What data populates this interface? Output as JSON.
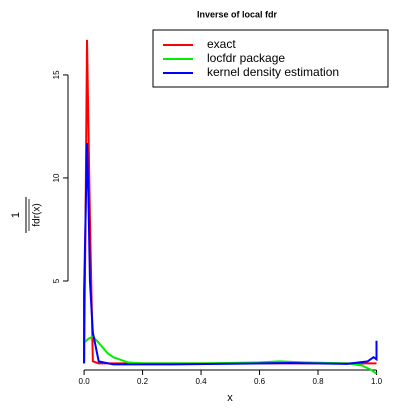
{
  "chart_data": {
    "type": "line",
    "title": "Inverse of local fdr",
    "x_label": "x",
    "y_label_numerator": "1",
    "y_label_denominator": "fdr(x)",
    "xlim": [
      -0.055,
      1.053
    ],
    "ylim": [
      0.68,
      17.18
    ],
    "xticks": [
      {
        "value": 0,
        "label": "0.0"
      },
      {
        "value": 0.2,
        "label": "0.2"
      },
      {
        "value": 0.4,
        "label": "0.4"
      },
      {
        "value": 0.6,
        "label": "0.6"
      },
      {
        "value": 0.8,
        "label": "0.8"
      },
      {
        "value": 1,
        "label": "1.0"
      }
    ],
    "yticks": [
      5,
      10,
      15
    ],
    "legend": "top-right",
    "series": [
      {
        "name": "exact",
        "color": "#ff0000",
        "x": [
          0,
          0.005,
          0.01,
          0.02,
          0.03,
          0.05,
          0.5,
          1.0
        ],
        "values": [
          1,
          8,
          16.7,
          8,
          1.1,
          1,
          1,
          1
        ]
      },
      {
        "name": "locfdr package",
        "color": "#00ee00",
        "x": [
          0,
          0.015,
          0.03,
          0.05,
          0.08,
          0.1,
          0.15,
          0.2,
          0.4,
          0.6,
          0.67,
          0.75,
          0.9,
          0.95,
          0.98,
          1.0
        ],
        "values": [
          2,
          2.2,
          2.3,
          2.0,
          1.5,
          1.3,
          1.05,
          1.0,
          1.0,
          1.05,
          1.1,
          1.05,
          1.0,
          0.9,
          0.7,
          0.5
        ]
      },
      {
        "name": "kernel density estimation",
        "color": "#0000ff",
        "x": [
          0,
          0,
          0.01,
          0.015,
          0.02,
          0.03,
          0.05,
          0.1,
          0.3,
          0.6,
          0.7,
          0.9,
          0.97,
          0.99,
          1.0,
          1.0
        ],
        "values": [
          1,
          4.4,
          11.7,
          9,
          5,
          2.5,
          1.1,
          0.95,
          0.95,
          1,
          1.02,
          0.98,
          1.1,
          1.3,
          1.2,
          2.1
        ]
      }
    ]
  }
}
